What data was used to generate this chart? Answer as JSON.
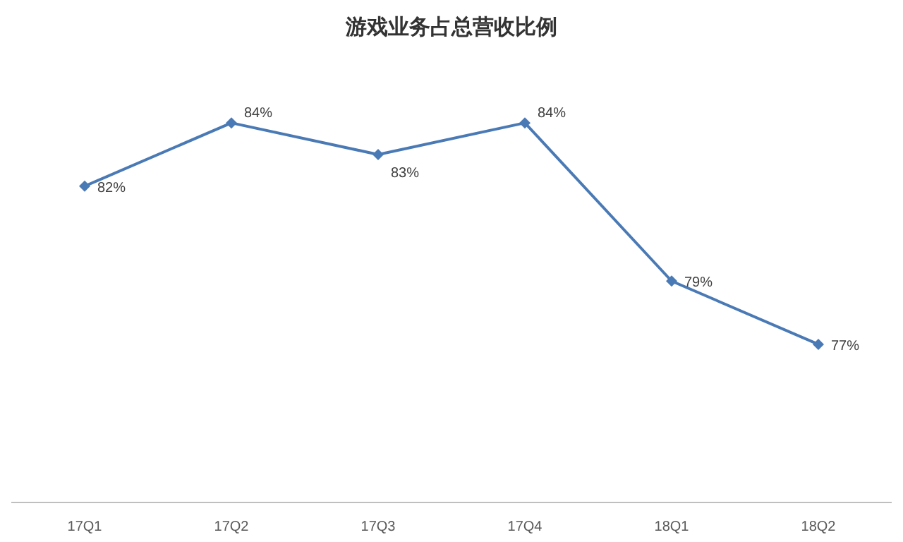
{
  "chart_data": {
    "type": "line",
    "title": "游戏业务占总营收比例",
    "categories": [
      "17Q1",
      "17Q2",
      "17Q3",
      "17Q4",
      "18Q1",
      "18Q2"
    ],
    "series": [
      {
        "color": "#4a7ab5",
        "values": [
          82,
          84,
          83,
          84,
          79,
          77
        ],
        "value_labels": [
          "82%",
          "84%",
          "83%",
          "84%",
          "79%",
          "77%"
        ]
      }
    ],
    "marker": "diamond",
    "line_style": "solid"
  }
}
